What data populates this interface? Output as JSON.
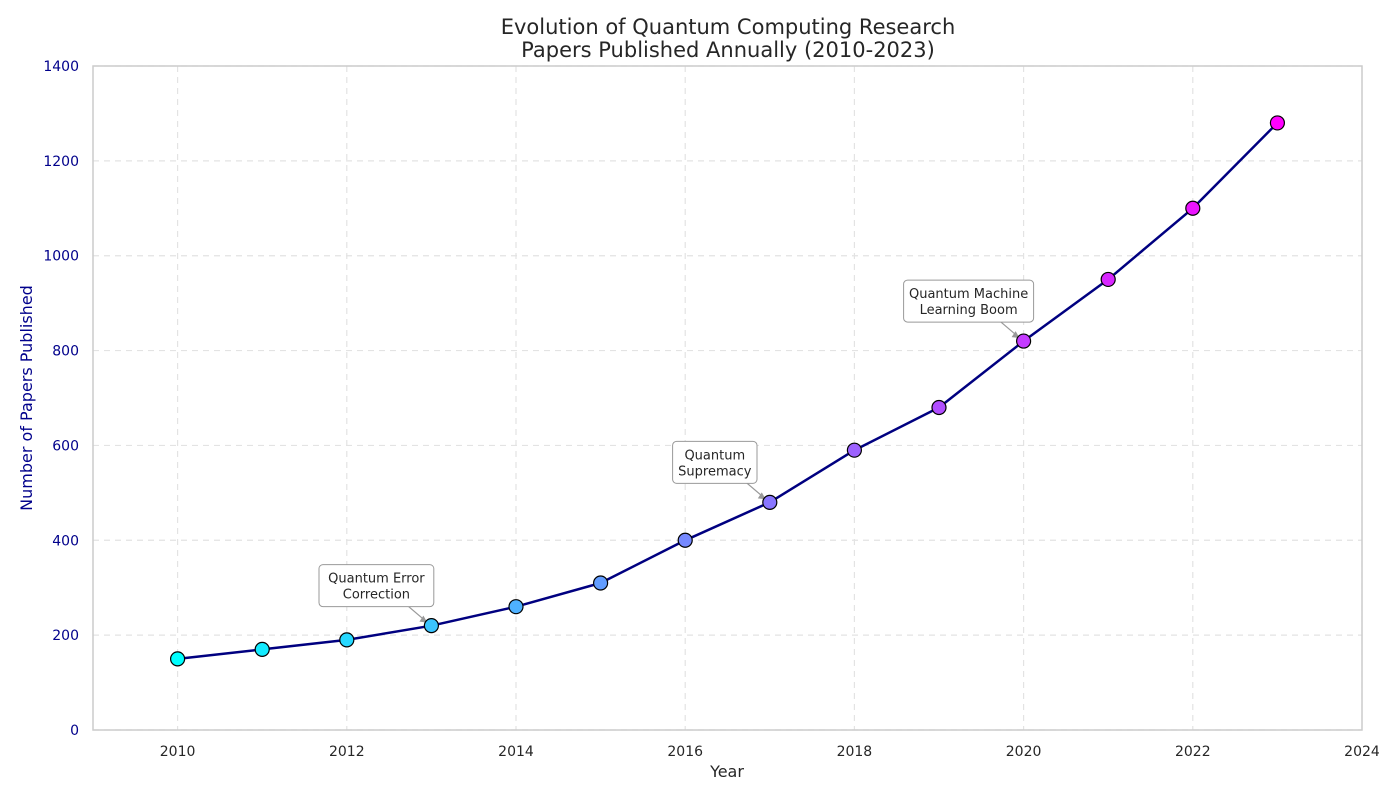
{
  "chart_data": {
    "type": "line",
    "title": [
      "Evolution of Quantum Computing Research",
      "Papers Published Annually (2010-2023)"
    ],
    "xlabel": "Year",
    "ylabel": "Number of Papers Published",
    "x": [
      2010,
      2011,
      2012,
      2013,
      2014,
      2015,
      2016,
      2017,
      2018,
      2019,
      2020,
      2021,
      2022,
      2023
    ],
    "y": [
      150,
      170,
      190,
      220,
      260,
      310,
      400,
      480,
      590,
      680,
      820,
      950,
      1100,
      1280
    ],
    "xlim": [
      2009,
      2024
    ],
    "ylim": [
      0,
      1400
    ],
    "xticks": [
      2010,
      2012,
      2014,
      2016,
      2018,
      2020,
      2022,
      2024
    ],
    "yticks": [
      0,
      200,
      400,
      600,
      800,
      1000,
      1200,
      1400
    ],
    "grid": true,
    "line_color": "#000080",
    "marker_colormap": [
      "#00ffff",
      "#ff00ff"
    ],
    "annotations": [
      {
        "x": 2013,
        "y": 220,
        "lines": [
          "Quantum Error",
          "Correction"
        ]
      },
      {
        "x": 2017,
        "y": 480,
        "lines": [
          "Quantum",
          "Supremacy"
        ]
      },
      {
        "x": 2020,
        "y": 820,
        "lines": [
          "Quantum Machine",
          "Learning Boom"
        ]
      }
    ]
  }
}
